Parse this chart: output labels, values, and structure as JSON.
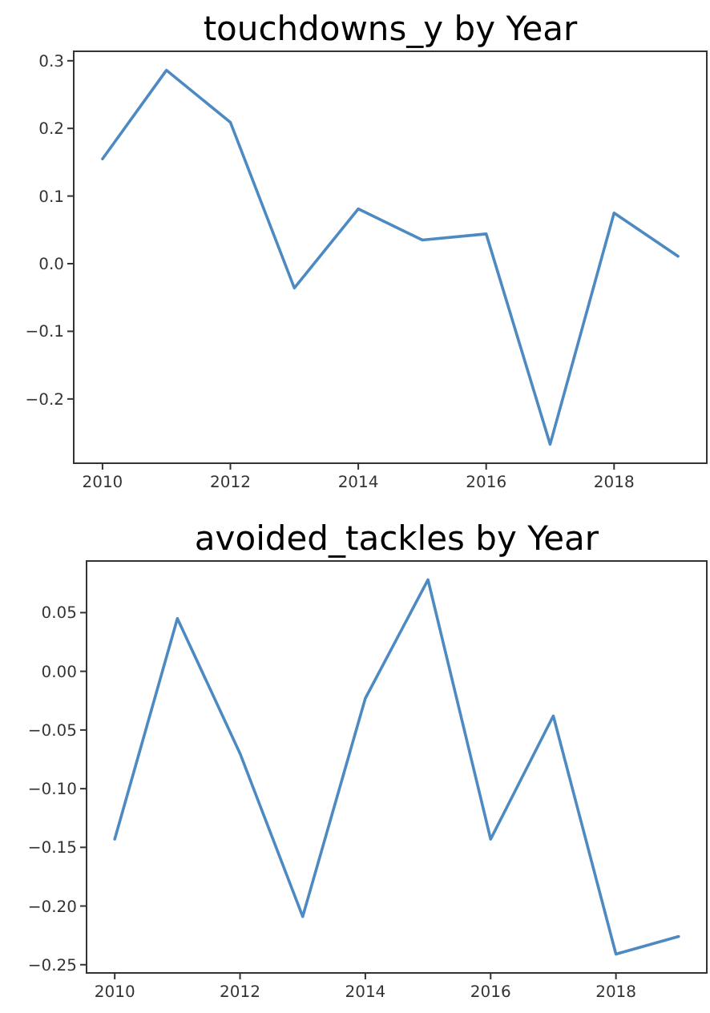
{
  "chart_data": [
    {
      "type": "line",
      "title": "touchdowns_y by Year",
      "x": [
        2010,
        2011,
        2012,
        2013,
        2014,
        2015,
        2016,
        2017,
        2018,
        2019
      ],
      "series": [
        {
          "color": "#4d8ac2",
          "values": [
            0.155,
            0.286,
            0.209,
            -0.036,
            0.081,
            0.035,
            0.044,
            -0.267,
            0.075,
            0.011
          ]
        }
      ],
      "xlim": [
        2009.55,
        2019.45
      ],
      "xticks": [
        2010,
        2012,
        2014,
        2016,
        2018
      ],
      "ylim": [
        -0.295,
        0.314
      ],
      "yticks": [
        {
          "value": -0.2,
          "label": "−0.2"
        },
        {
          "value": -0.1,
          "label": "−0.1"
        },
        {
          "value": 0,
          "label": "0.0"
        },
        0.1,
        0.2,
        0.3
      ]
    },
    {
      "type": "line",
      "title": "avoided_tackles by Year",
      "x": [
        2010,
        2011,
        2012,
        2013,
        2014,
        2015,
        2016,
        2017,
        2018,
        2019
      ],
      "series": [
        {
          "color": "#4d8ac2",
          "values": [
            -0.143,
            0.045,
            -0.07,
            -0.209,
            -0.023,
            0.078,
            -0.143,
            -0.038,
            -0.241,
            -0.226
          ]
        }
      ],
      "xlim": [
        2009.55,
        2019.45
      ],
      "xticks": [
        2010,
        2012,
        2014,
        2016,
        2018
      ],
      "ylim": [
        -0.257,
        0.094
      ],
      "yticks": [
        {
          "value": -0.25,
          "label": "−0.25"
        },
        {
          "value": -0.2,
          "label": "−0.20"
        },
        {
          "value": -0.15,
          "label": "−0.15"
        },
        {
          "value": -0.1,
          "label": "−0.10"
        },
        {
          "value": -0.05,
          "label": "−0.05"
        },
        {
          "value": 0,
          "label": "0.00"
        },
        0.05
      ]
    }
  ]
}
